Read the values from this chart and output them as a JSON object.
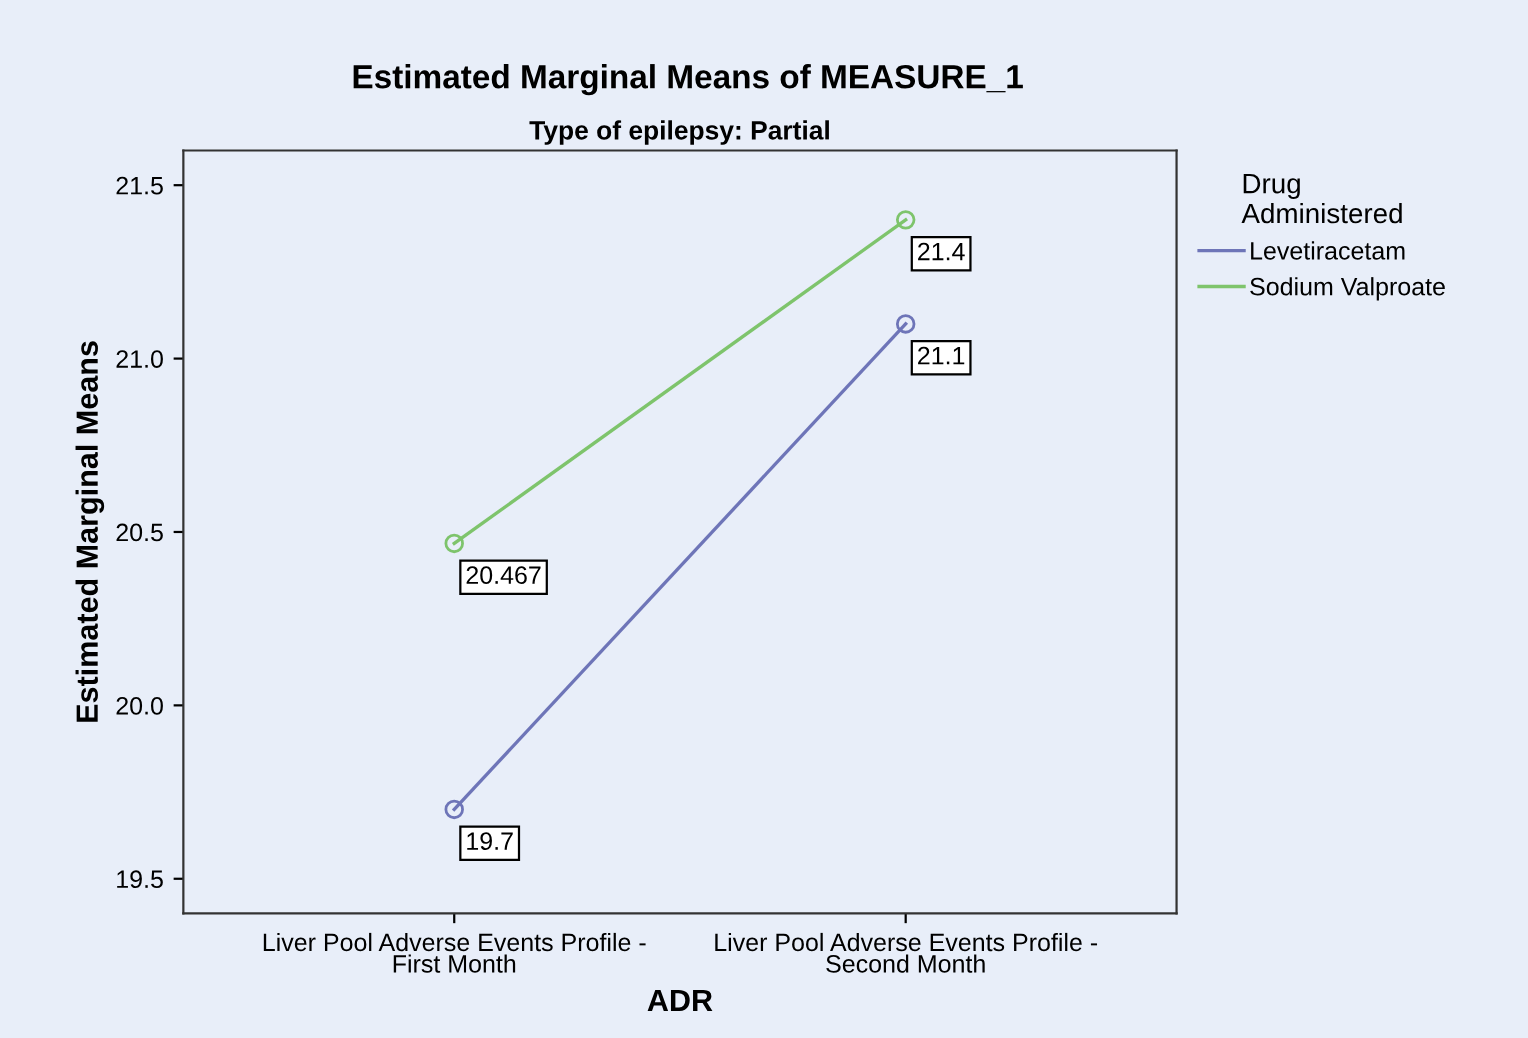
{
  "chart_data": {
    "type": "line",
    "title": "Estimated Marginal Means of MEASURE_1",
    "subtitle": "Type of epilepsy: Partial",
    "xlabel": "ADR",
    "ylabel": "Estimated Marginal Means",
    "legend_title": "Drug\nAdministered",
    "categories": [
      "Liver Pool Adverse Events Profile -\nFirst Month",
      "Liver Pool Adverse Events Profile -\nSecond Month"
    ],
    "series": [
      {
        "name": "Levetiracetam",
        "color": "#6e75b8",
        "values": [
          19.7,
          21.1
        ]
      },
      {
        "name": "Sodium Valproate",
        "color": "#7ec46c",
        "values": [
          20.467,
          21.4
        ]
      }
    ],
    "ylim": [
      19.4,
      21.6
    ],
    "yticks": [
      {
        "value": 19.5,
        "label": "19.5"
      },
      {
        "value": 20.0,
        "label": "20.0"
      },
      {
        "value": 20.5,
        "label": "20.5"
      },
      {
        "value": 21.0,
        "label": "21.0"
      },
      {
        "value": 21.5,
        "label": "21.5"
      }
    ],
    "data_labels": true,
    "marker": "circle",
    "line_style": "solid",
    "grid": false,
    "legend": "top right"
  }
}
